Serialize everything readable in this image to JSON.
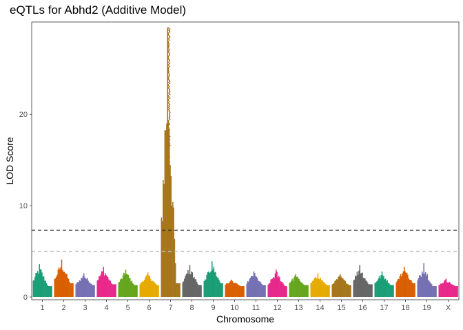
{
  "chart_data": {
    "type": "scatter",
    "title": "eQTLs for Abhd2 (Additive Model)",
    "xlabel": "Chromosome",
    "ylabel": "LOD Score",
    "ylim": [
      -0.3,
      30.1
    ],
    "y_ticks": [
      "0",
      "10",
      "20"
    ],
    "grid": false,
    "legend": "none",
    "thresholds": [
      {
        "value": 7.3,
        "color": "#222222",
        "style": "dashed"
      },
      {
        "value": 5.0,
        "color": "#bdbdbd",
        "style": "dashed"
      }
    ],
    "chromosomes": [
      {
        "label": "1",
        "color": "#1B9E77",
        "baseline": 1.2,
        "max": 3.6
      },
      {
        "label": "2",
        "color": "#D95F02",
        "baseline": 1.5,
        "max": 4.1
      },
      {
        "label": "3",
        "color": "#7570B3",
        "baseline": 1.3,
        "max": 2.6
      },
      {
        "label": "4",
        "color": "#E7298A",
        "baseline": 1.4,
        "max": 3.3
      },
      {
        "label": "5",
        "color": "#66A61E",
        "baseline": 1.3,
        "max": 3.0
      },
      {
        "label": "6",
        "color": "#E6AB02",
        "baseline": 1.3,
        "max": 2.7
      },
      {
        "label": "7",
        "color": "#A6761D",
        "baseline": 1.5,
        "max": 29.5,
        "peak": true
      },
      {
        "label": "8",
        "color": "#666666",
        "baseline": 1.3,
        "max": 3.5
      },
      {
        "label": "9",
        "color": "#1B9E77",
        "baseline": 1.5,
        "max": 3.9
      },
      {
        "label": "10",
        "color": "#D95F02",
        "baseline": 1.2,
        "max": 1.9
      },
      {
        "label": "11",
        "color": "#7570B3",
        "baseline": 1.3,
        "max": 2.8
      },
      {
        "label": "12",
        "color": "#E7298A",
        "baseline": 1.2,
        "max": 3.0
      },
      {
        "label": "13",
        "color": "#66A61E",
        "baseline": 1.3,
        "max": 2.5
      },
      {
        "label": "14",
        "color": "#E6AB02",
        "baseline": 1.3,
        "max": 2.6
      },
      {
        "label": "15",
        "color": "#A6761D",
        "baseline": 1.3,
        "max": 2.5
      },
      {
        "label": "16",
        "color": "#666666",
        "baseline": 1.4,
        "max": 3.5
      },
      {
        "label": "17",
        "color": "#1B9E77",
        "baseline": 1.3,
        "max": 2.8
      },
      {
        "label": "18",
        "color": "#D95F02",
        "baseline": 1.5,
        "max": 3.3
      },
      {
        "label": "19",
        "color": "#7570B3",
        "baseline": 1.2,
        "max": 3.7
      },
      {
        "label": "X",
        "color": "#E7298A",
        "baseline": 1.2,
        "max": 2.0
      }
    ]
  }
}
